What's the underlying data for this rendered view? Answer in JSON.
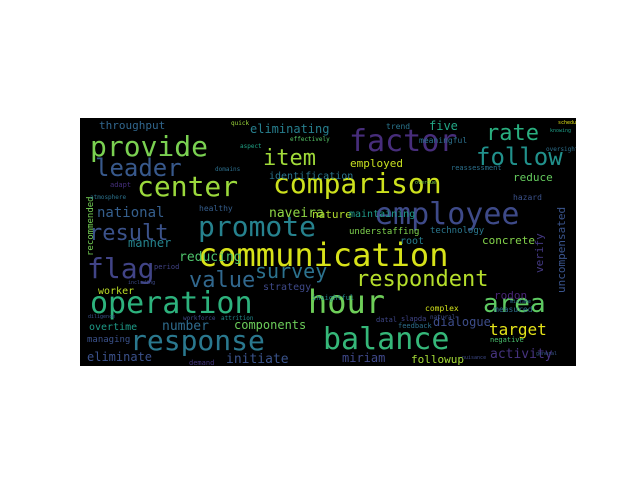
{
  "wordcloud": {
    "background": "#000000",
    "words": [
      {
        "text": "communication",
        "color": "#d7e219"
      },
      {
        "text": "balance",
        "color": "#35b779"
      },
      {
        "text": "employee",
        "color": "#3e4a89"
      },
      {
        "text": "hour",
        "color": "#6ece58"
      },
      {
        "text": "operation",
        "color": "#2db27d"
      },
      {
        "text": "response",
        "color": "#2a788e"
      },
      {
        "text": "comparison",
        "color": "#cde11d"
      },
      {
        "text": "promote",
        "color": "#26828e"
      },
      {
        "text": "factor",
        "color": "#472d7b"
      },
      {
        "text": "center",
        "color": "#9bd93c"
      },
      {
        "text": "provide",
        "color": "#7ad151"
      },
      {
        "text": "respondent",
        "color": "#b5de2b"
      },
      {
        "text": "item",
        "color": "#a0da39"
      },
      {
        "text": "follow",
        "color": "#21918c"
      },
      {
        "text": "flag",
        "color": "#414487"
      },
      {
        "text": "area",
        "color": "#5ec962"
      },
      {
        "text": "rate",
        "color": "#29af7f"
      },
      {
        "text": "leader",
        "color": "#38598c"
      },
      {
        "text": "value",
        "color": "#31688e"
      },
      {
        "text": "survey",
        "color": "#2c728e"
      },
      {
        "text": "result",
        "color": "#3b528b"
      },
      {
        "text": "target",
        "color": "#e5e419"
      },
      {
        "text": "activity",
        "color": "#46337f"
      },
      {
        "text": "miriam",
        "color": "#3f4889"
      },
      {
        "text": "national",
        "color": "#355f8d"
      },
      {
        "text": "naveira",
        "color": "#8fd744"
      },
      {
        "text": "followup",
        "color": "#a5db36"
      },
      {
        "text": "initiate",
        "color": "#3a538b"
      },
      {
        "text": "eliminate",
        "color": "#3b518b"
      },
      {
        "text": "number",
        "color": "#2f6c8e"
      },
      {
        "text": "components",
        "color": "#6ccd5a"
      },
      {
        "text": "worker",
        "color": "#bddf26"
      },
      {
        "text": "reducing",
        "color": "#4ec36b"
      },
      {
        "text": "manner",
        "color": "#25848e"
      },
      {
        "text": "eliminating",
        "color": "#277f8e"
      },
      {
        "text": "throughput",
        "color": "#31678e"
      },
      {
        "text": "five",
        "color": "#22a785"
      },
      {
        "text": "employed",
        "color": "#c8e020"
      },
      {
        "text": "nature",
        "color": "#b0dd2f"
      },
      {
        "text": "identification",
        "color": "#2a768e"
      },
      {
        "text": "reduce",
        "color": "#65cb5e"
      },
      {
        "text": "verify",
        "color": "#443983"
      },
      {
        "text": "concrete",
        "color": "#84d44b"
      },
      {
        "text": "dialogue",
        "color": "#3d4d8a"
      },
      {
        "text": "rodon",
        "color": "#482576"
      },
      {
        "text": "understaffing",
        "color": "#7fd34e"
      },
      {
        "text": "maintaining",
        "color": "#1f9a8a"
      },
      {
        "text": "healthy",
        "color": "#355e8d"
      },
      {
        "text": "strategy",
        "color": "#3e4989"
      },
      {
        "text": "technology",
        "color": "#2a778e"
      },
      {
        "text": "root",
        "color": "#277e8e"
      },
      {
        "text": "recommended",
        "color": "#75d054"
      },
      {
        "text": "uncompensated",
        "color": "#3a548c"
      },
      {
        "text": "overtime",
        "color": "#1e9c89"
      },
      {
        "text": "managing",
        "color": "#3b528b"
      },
      {
        "text": "meaningful",
        "color": "#2c718e"
      },
      {
        "text": "measured",
        "color": "#2e6f8e"
      },
      {
        "text": "complex",
        "color": "#d2e21b"
      },
      {
        "text": "insightful",
        "color": "#23888e"
      },
      {
        "text": "feedback",
        "color": "#2d708e"
      },
      {
        "text": "demand",
        "color": "#453781"
      },
      {
        "text": "trend",
        "color": "#2a768e"
      },
      {
        "text": "hazard",
        "color": "#3b528b"
      },
      {
        "text": "negative",
        "color": "#4ac16d"
      },
      {
        "text": "natural",
        "color": "#3d4e8a"
      },
      {
        "text": "period",
        "color": "#414387"
      },
      {
        "text": "adapt",
        "color": "#46307e"
      },
      {
        "text": "atmosphere",
        "color": "#2c738e"
      },
      {
        "text": "workforce",
        "color": "#3e4a89"
      },
      {
        "text": "attrition",
        "color": "#238a8d"
      },
      {
        "text": "domains",
        "color": "#2d708e"
      },
      {
        "text": "reassessment",
        "color": "#2c718e"
      },
      {
        "text": "effectively",
        "color": "#56c667"
      },
      {
        "text": "aspect",
        "color": "#20a386"
      },
      {
        "text": "quick",
        "color": "#9dd93b"
      },
      {
        "text": "slapda",
        "color": "#404588"
      },
      {
        "text": "datal",
        "color": "#3f4788"
      },
      {
        "text": "oversight",
        "color": "#2d708e"
      },
      {
        "text": "scheduling",
        "color": "#e2e418"
      },
      {
        "text": "including",
        "color": "#3e4c8a"
      },
      {
        "text": "diligence",
        "color": "#3b528b"
      },
      {
        "text": "overdue",
        "color": "#7fd34e"
      },
      {
        "text": "mistake",
        "color": "#2d708e"
      },
      {
        "text": "general",
        "color": "#38588c"
      },
      {
        "text": "nuisance",
        "color": "#3e4a89"
      },
      {
        "text": "knowing",
        "color": "#1fa088"
      }
    ]
  }
}
